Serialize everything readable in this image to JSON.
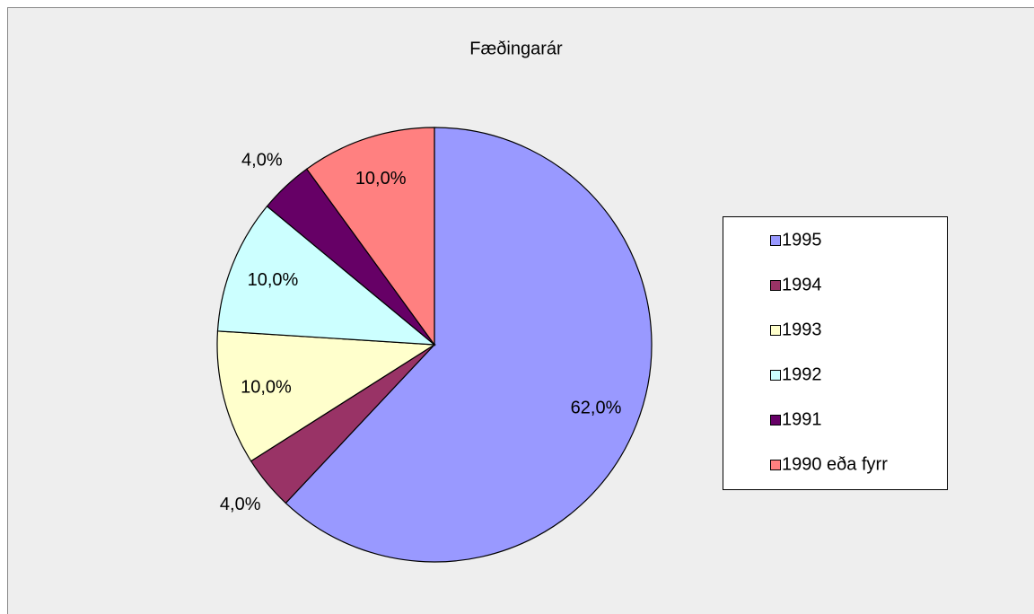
{
  "chart_data": {
    "type": "pie",
    "title": "Fæðingarár",
    "categories": [
      "1995",
      "1994",
      "1993",
      "1992",
      "1991",
      "1990 eða fyrr"
    ],
    "values": [
      62,
      4,
      10,
      10,
      4,
      10
    ],
    "value_labels": [
      "62,0%",
      "4,0%",
      "10,0%",
      "10,0%",
      "4,0%",
      "10,0%"
    ],
    "colors": [
      "#9999ff",
      "#993366",
      "#ffffcc",
      "#ccffff",
      "#660066",
      "#ff8080"
    ],
    "legend": "right"
  }
}
